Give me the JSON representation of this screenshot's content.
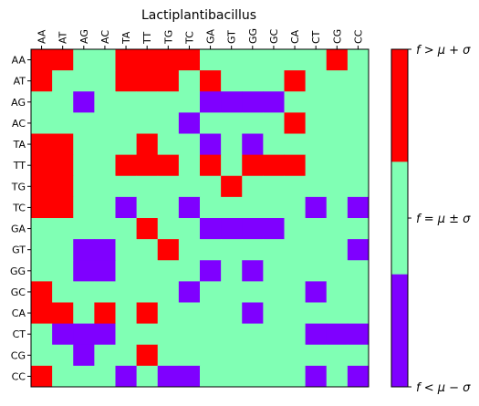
{
  "chart_data": {
    "type": "heatmap",
    "title": "Lactiplantibacillus",
    "x_labels": [
      "AA",
      "AT",
      "AG",
      "AC",
      "TA",
      "TT",
      "TG",
      "TC",
      "GA",
      "GT",
      "GG",
      "GC",
      "CA",
      "CT",
      "CG",
      "CC"
    ],
    "y_labels": [
      "AA",
      "AT",
      "AG",
      "AC",
      "TA",
      "TT",
      "TG",
      "TC",
      "GA",
      "GT",
      "GG",
      "GC",
      "CA",
      "CT",
      "CG",
      "CC"
    ],
    "value_key": {
      "-1": "f < μ − σ",
      "0": "f = μ ± σ",
      "1": "f > μ + σ"
    },
    "colors": {
      "low": "#7f00ff",
      "mid": "#80ffb4",
      "high": "#ff0000"
    },
    "matrix": [
      [
        1,
        1,
        0,
        0,
        1,
        1,
        1,
        1,
        0,
        0,
        0,
        0,
        0,
        0,
        1,
        0
      ],
      [
        1,
        0,
        0,
        0,
        1,
        1,
        1,
        0,
        1,
        0,
        0,
        0,
        1,
        0,
        0,
        0
      ],
      [
        0,
        0,
        -1,
        0,
        0,
        0,
        0,
        0,
        -1,
        -1,
        -1,
        -1,
        0,
        0,
        0,
        0
      ],
      [
        0,
        0,
        0,
        0,
        0,
        0,
        0,
        -1,
        0,
        0,
        0,
        0,
        1,
        0,
        0,
        0
      ],
      [
        1,
        1,
        0,
        0,
        0,
        1,
        0,
        0,
        -1,
        0,
        -1,
        0,
        0,
        0,
        0,
        0
      ],
      [
        1,
        1,
        0,
        0,
        1,
        1,
        1,
        0,
        1,
        0,
        1,
        1,
        1,
        0,
        0,
        0
      ],
      [
        1,
        1,
        0,
        0,
        0,
        0,
        0,
        0,
        0,
        1,
        0,
        0,
        0,
        0,
        0,
        0
      ],
      [
        1,
        1,
        0,
        0,
        -1,
        0,
        0,
        -1,
        0,
        0,
        0,
        0,
        0,
        -1,
        0,
        -1
      ],
      [
        0,
        0,
        0,
        0,
        0,
        1,
        0,
        0,
        -1,
        -1,
        -1,
        -1,
        0,
        0,
        0,
        0
      ],
      [
        0,
        0,
        -1,
        -1,
        0,
        0,
        1,
        0,
        0,
        0,
        0,
        0,
        0,
        0,
        0,
        -1
      ],
      [
        0,
        0,
        -1,
        -1,
        0,
        0,
        0,
        0,
        -1,
        0,
        -1,
        0,
        0,
        0,
        0,
        0
      ],
      [
        1,
        0,
        0,
        0,
        0,
        0,
        0,
        -1,
        0,
        0,
        0,
        0,
        0,
        -1,
        0,
        0
      ],
      [
        1,
        1,
        0,
        1,
        0,
        1,
        0,
        0,
        0,
        0,
        -1,
        0,
        0,
        0,
        0,
        0
      ],
      [
        0,
        -1,
        -1,
        -1,
        0,
        0,
        0,
        0,
        0,
        0,
        0,
        0,
        0,
        -1,
        -1,
        -1
      ],
      [
        0,
        0,
        -1,
        0,
        0,
        1,
        0,
        0,
        0,
        0,
        0,
        0,
        0,
        0,
        0,
        0
      ],
      [
        1,
        0,
        0,
        0,
        -1,
        0,
        -1,
        -1,
        0,
        0,
        0,
        0,
        0,
        -1,
        0,
        -1
      ]
    ],
    "colorbar": {
      "labels": [
        "f > μ + σ",
        "f = μ ± σ",
        "f < μ − σ"
      ]
    }
  }
}
